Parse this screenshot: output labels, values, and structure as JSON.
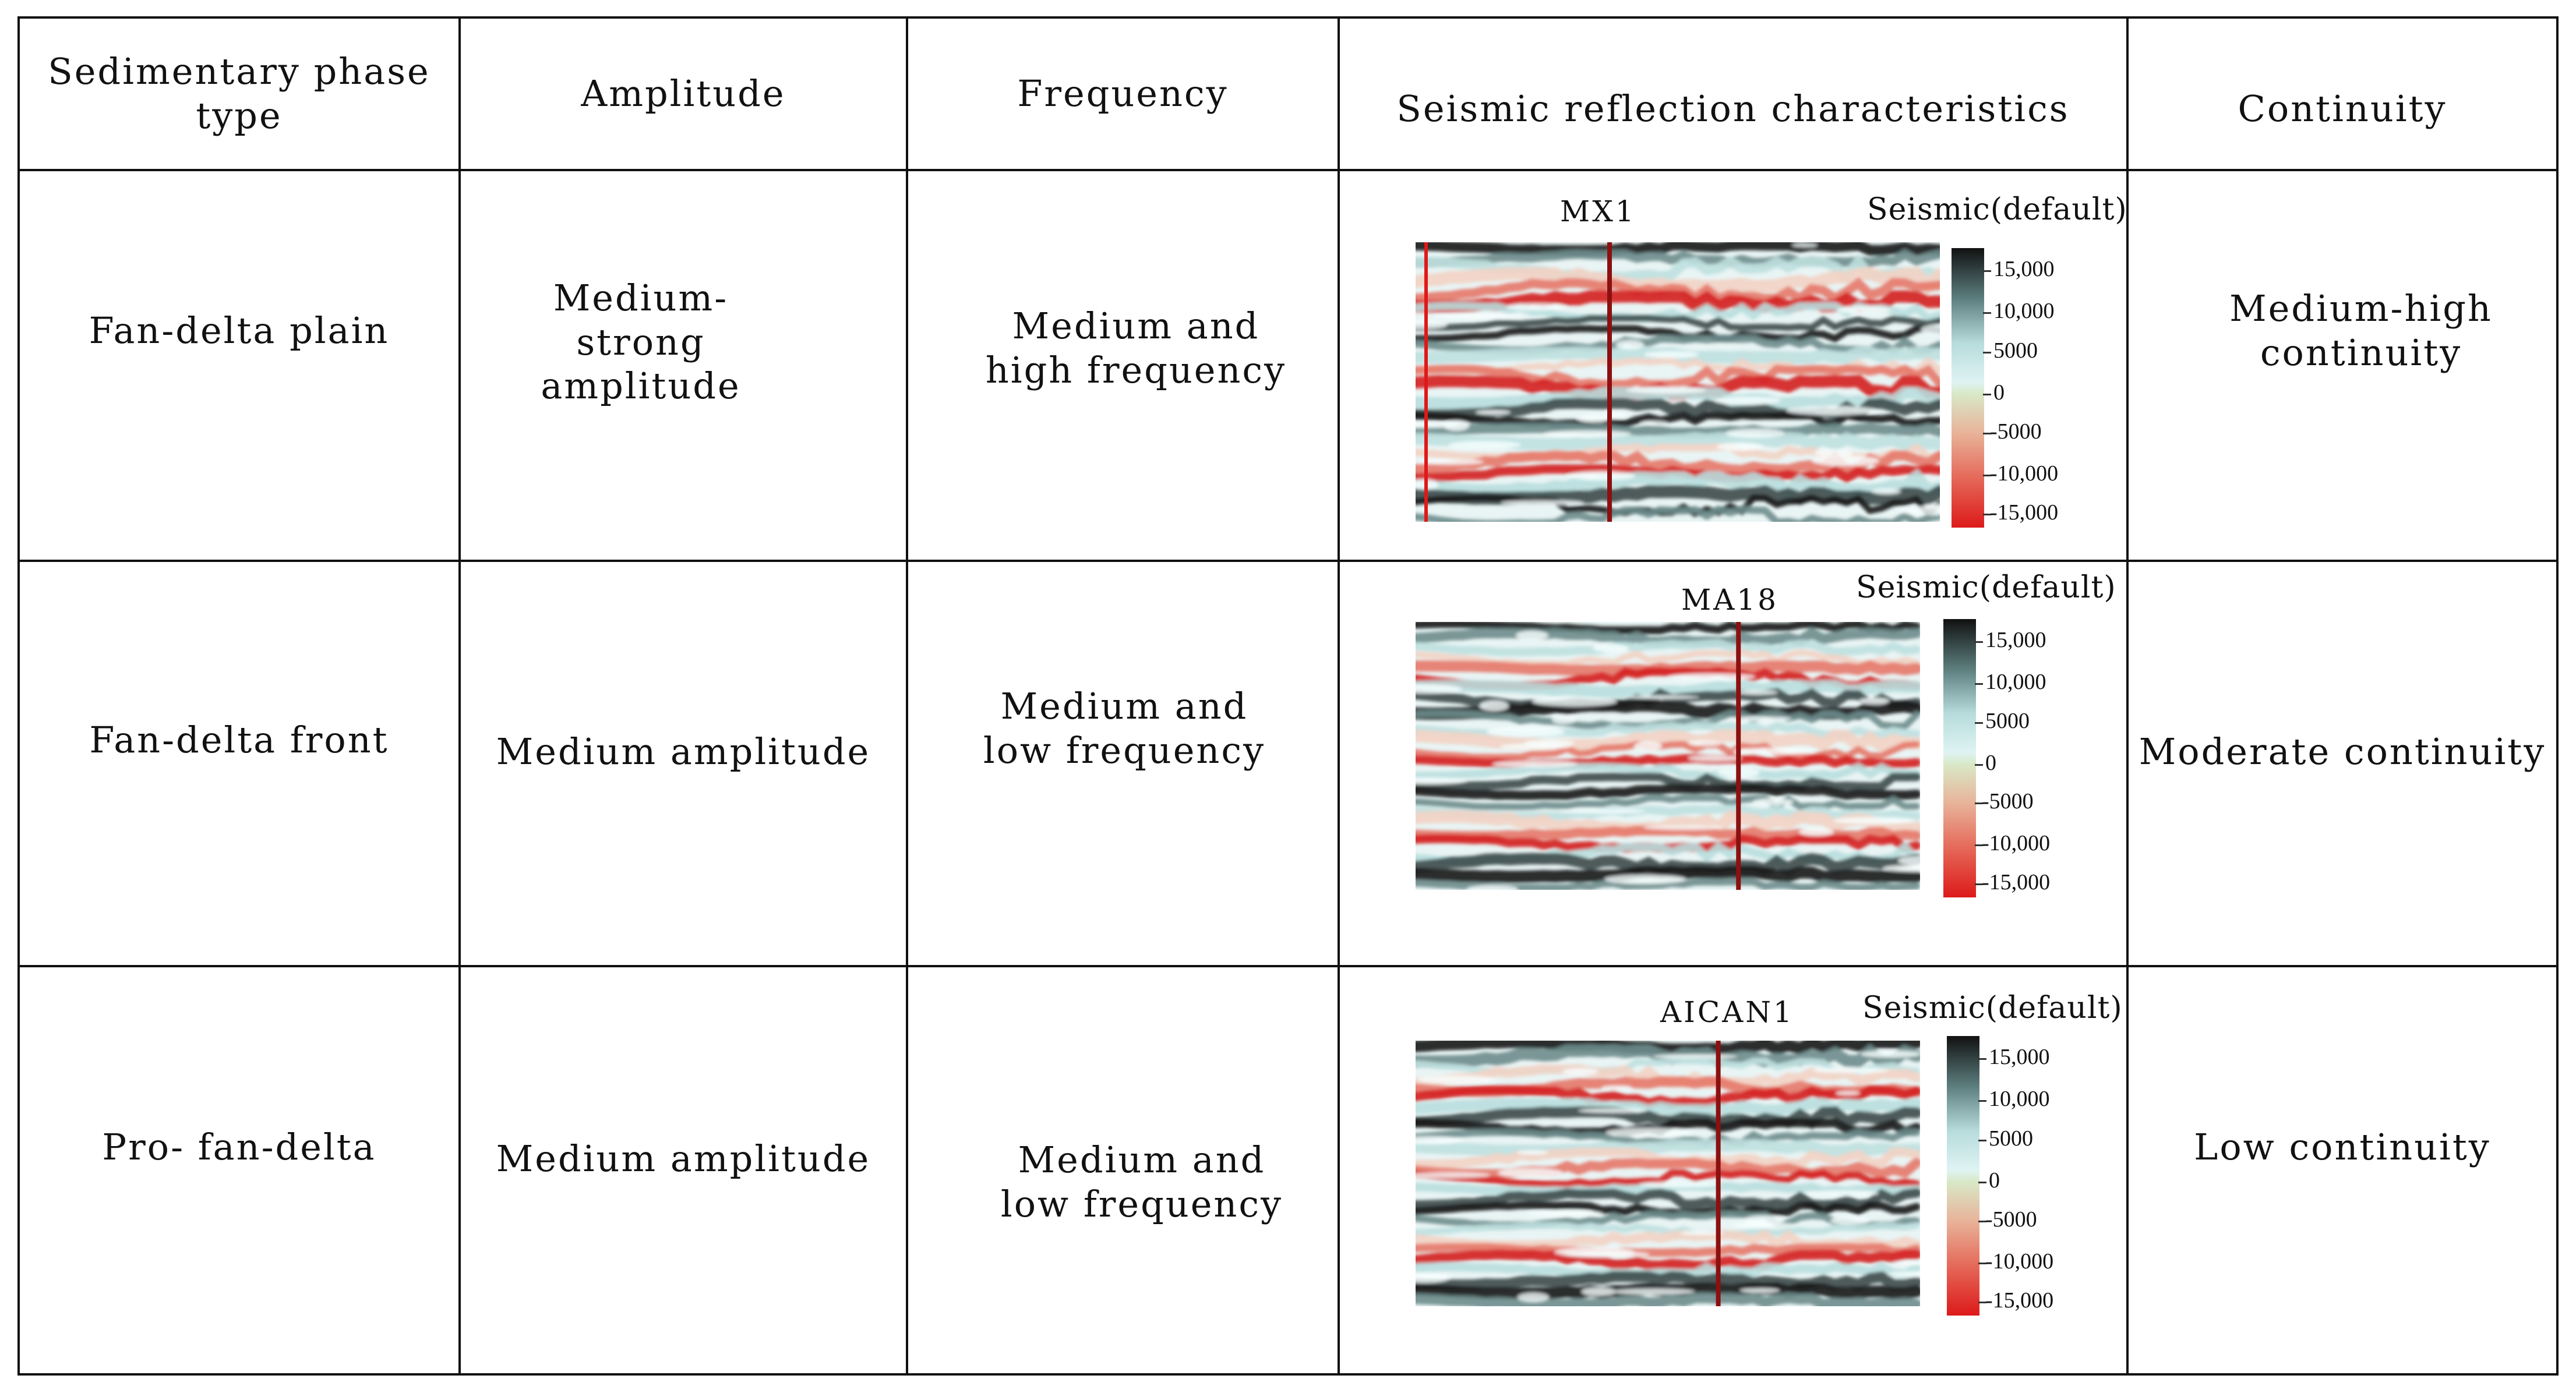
{
  "headers": {
    "phase": "Sedimentary phase type",
    "amplitude": "Amplitude",
    "frequency": "Frequency",
    "seismic": "Seismic reflection characteristics",
    "continuity": "Continuity"
  },
  "rows": [
    {
      "phase": "Fan-delta plain",
      "amplitude": "Medium-strong amplitude",
      "frequency": "Medium and high frequency",
      "continuity": "Medium-high continuity",
      "seismic": {
        "well": "MX1",
        "colorbar_title": "Seismic(default)",
        "ticks": [
          "15,000",
          "10,000",
          "5000",
          "0",
          "-5000",
          "-10,000",
          "-15,000"
        ]
      }
    },
    {
      "phase": "Fan-delta front",
      "amplitude": "Medium amplitude",
      "frequency": "Medium and low frequency",
      "continuity": "Moderate continuity",
      "seismic": {
        "well": "MA18",
        "colorbar_title": "Seismic(default)",
        "ticks": [
          "15,000",
          "10,000",
          "5000",
          "0",
          "-5000",
          "-10,000",
          "-15,000"
        ]
      }
    },
    {
      "phase": "Pro- fan-delta",
      "amplitude": "Medium amplitude",
      "frequency": "Medium and low frequency",
      "continuity": "Low continuity",
      "seismic": {
        "well": "AICAN1",
        "colorbar_title": "Seismic(default)",
        "ticks": [
          "15,000",
          "10,000",
          "5000",
          "0",
          "-5000",
          "-10,000",
          "-15,000"
        ]
      }
    }
  ],
  "colors": {
    "positive": "#111111",
    "mid": "#dff3f3",
    "negative": "#dd1a1a",
    "well_line": "#8b1010"
  }
}
